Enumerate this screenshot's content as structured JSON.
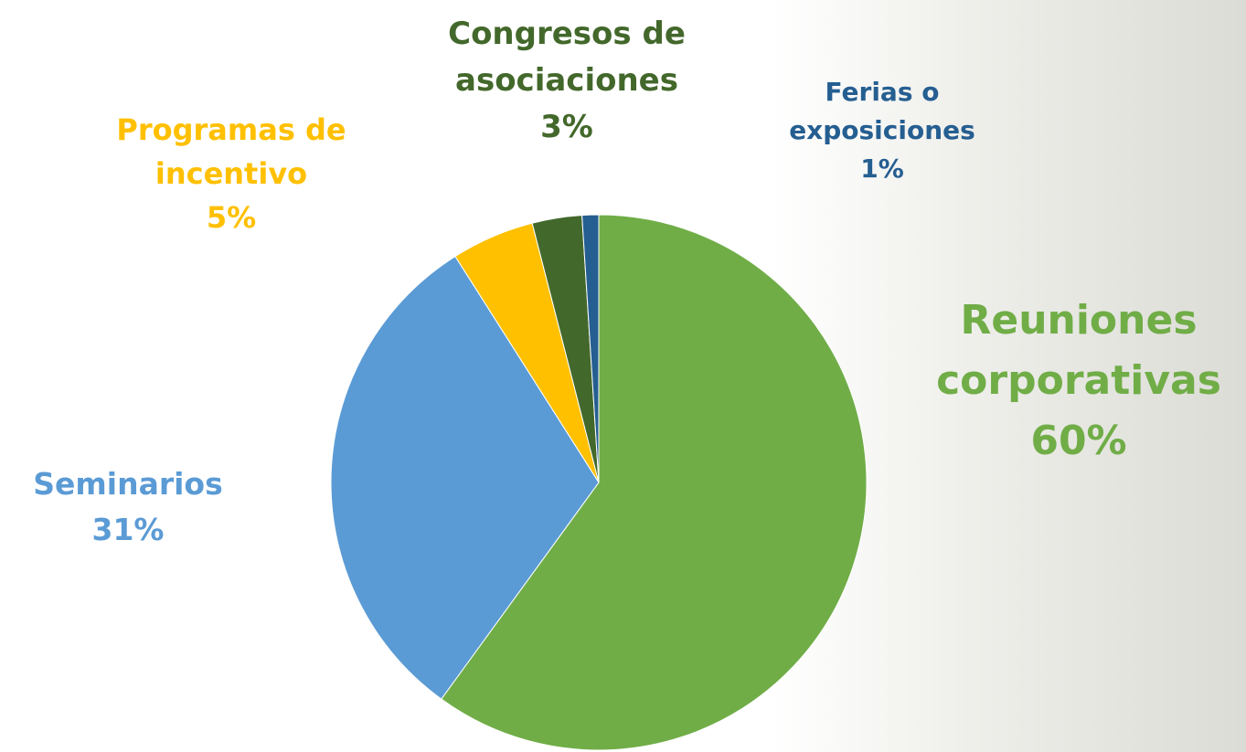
{
  "chart_data": {
    "type": "pie",
    "categories": [
      "Reuniones corporativas",
      "Seminarios",
      "Programas de incentivo",
      "Congresos de asociaciones",
      "Ferias o exposiciones"
    ],
    "values": [
      60,
      31,
      5,
      3,
      1
    ],
    "value_labels": [
      "60%",
      "31%",
      "5%",
      "3%",
      "1%"
    ],
    "colors": [
      "#70ad47",
      "#5b9bd5",
      "#ffc000",
      "#43682b",
      "#255e91"
    ]
  }
}
